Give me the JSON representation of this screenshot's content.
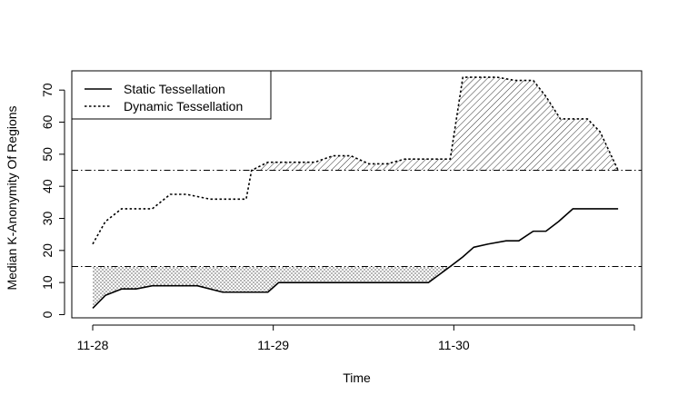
{
  "chart_data": {
    "type": "line",
    "title": "",
    "xlabel": "Time",
    "ylabel": "Median K-Anonymity Of Regions",
    "xlim": [
      0,
      3.0
    ],
    "ylim": [
      -1,
      76
    ],
    "x_tick_labels": [
      {
        "value": 0,
        "label": "11-28"
      },
      {
        "value": 1,
        "label": "11-29"
      },
      {
        "value": 2,
        "label": "11-30"
      }
    ],
    "y_ticks": [
      0,
      10,
      20,
      30,
      40,
      50,
      60,
      70
    ],
    "x_axis_end_tick": 3.0,
    "legend": {
      "position": "top-left",
      "entries": [
        {
          "label": "Static Tessellation",
          "style": "solid"
        },
        {
          "label": "Dynamic Tessellation",
          "style": "dotted"
        }
      ]
    },
    "threshold_lines": [
      {
        "series": "Static Tessellation",
        "value": 15,
        "style": "dotdash"
      },
      {
        "series": "Dynamic Tessellation",
        "value": 45,
        "style": "dotdash"
      }
    ],
    "series": [
      {
        "name": "Static Tessellation",
        "style": "solid",
        "x": [
          0.0,
          0.07,
          0.16,
          0.24,
          0.33,
          0.43,
          0.58,
          0.72,
          0.86,
          0.97,
          1.03,
          1.18,
          1.3,
          1.43,
          1.56,
          1.71,
          1.86,
          1.98,
          2.05,
          2.11,
          2.19,
          2.29,
          2.36,
          2.44,
          2.51,
          2.58,
          2.66,
          2.74,
          2.81,
          2.91
        ],
        "values": [
          2,
          6,
          8,
          8,
          9,
          9,
          9,
          7,
          7,
          7,
          10,
          10,
          10,
          10,
          10,
          10,
          10,
          15,
          18,
          21,
          22,
          23,
          23,
          26,
          26,
          29,
          33,
          33,
          33,
          33
        ]
      },
      {
        "name": "Dynamic Tessellation",
        "style": "dotted",
        "x": [
          0.0,
          0.07,
          0.16,
          0.24,
          0.33,
          0.43,
          0.52,
          0.65,
          0.77,
          0.85,
          0.88,
          0.97,
          1.1,
          1.23,
          1.33,
          1.43,
          1.53,
          1.63,
          1.73,
          1.86,
          1.98,
          2.05,
          2.24,
          2.34,
          2.44,
          2.51,
          2.59,
          2.66,
          2.74,
          2.81,
          2.91
        ],
        "values": [
          22,
          29,
          33,
          33,
          33,
          37.5,
          37.5,
          36,
          36,
          36,
          45,
          47.5,
          47.5,
          47.5,
          49.5,
          49.5,
          47,
          47,
          48.5,
          48.5,
          48.5,
          74,
          74,
          73,
          73,
          68,
          61,
          61,
          61,
          57,
          45
        ]
      }
    ]
  }
}
